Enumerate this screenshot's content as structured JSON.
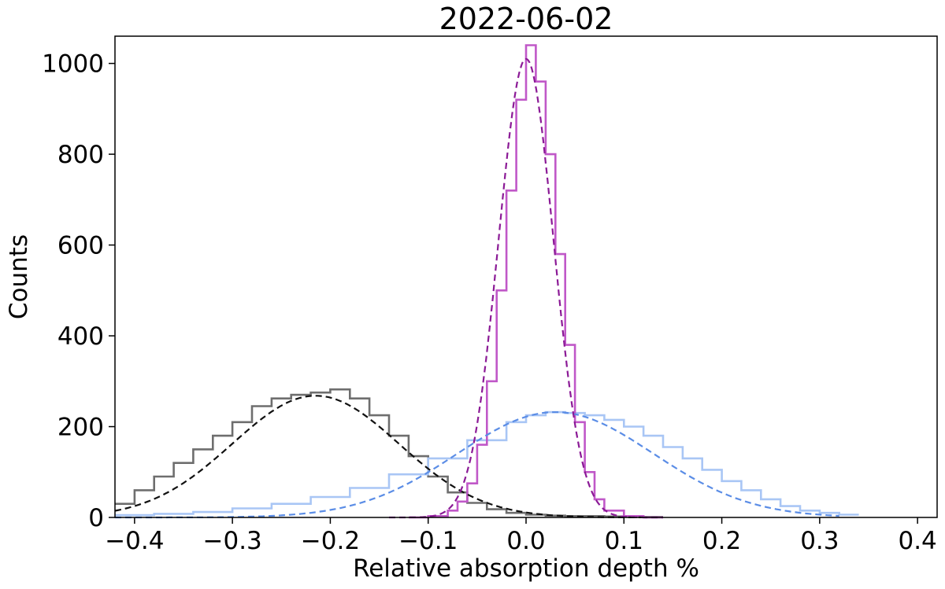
{
  "chart_data": {
    "type": "line",
    "title": "2022-06-02",
    "xlabel": "Relative absorption depth %",
    "ylabel": "Counts",
    "xlim": [
      -0.42,
      0.42
    ],
    "ylim": [
      0,
      1060
    ],
    "xticks": [
      -0.4,
      -0.3,
      -0.2,
      -0.1,
      0.0,
      0.1,
      0.2,
      0.3,
      0.4
    ],
    "xtick_labels": [
      "−0.4",
      "−0.3",
      "−0.2",
      "−0.1",
      "0.0",
      "0.1",
      "0.2",
      "0.3",
      "0.4"
    ],
    "yticks": [
      0,
      200,
      400,
      600,
      800,
      1000
    ],
    "ytick_labels": [
      "0",
      "200",
      "400",
      "600",
      "800",
      "1000"
    ],
    "grid": false,
    "legend": "none",
    "series": [
      {
        "style": "histogram",
        "color": "#6e6e6e",
        "x": [
          -0.42,
          -0.4,
          -0.38,
          -0.36,
          -0.34,
          -0.32,
          -0.3,
          -0.28,
          -0.26,
          -0.24,
          -0.22,
          -0.2,
          -0.18,
          -0.16,
          -0.14,
          -0.12,
          -0.1,
          -0.08,
          -0.06,
          -0.04,
          -0.02,
          0.0,
          0.02,
          0.04,
          0.06,
          0.08,
          0.1,
          0.12
        ],
        "y": [
          30,
          60,
          90,
          120,
          150,
          180,
          210,
          245,
          262,
          270,
          275,
          282,
          262,
          225,
          180,
          135,
          90,
          55,
          32,
          18,
          10,
          6,
          4,
          3,
          3,
          2,
          2,
          1
        ]
      },
      {
        "style": "histogram",
        "color": "#a9c6f5",
        "x": [
          -0.42,
          -0.38,
          -0.34,
          -0.3,
          -0.26,
          -0.22,
          -0.18,
          -0.14,
          -0.1,
          -0.06,
          -0.02,
          0.0,
          0.02,
          0.04,
          0.06,
          0.08,
          0.1,
          0.12,
          0.14,
          0.16,
          0.18,
          0.2,
          0.22,
          0.24,
          0.26,
          0.28,
          0.3,
          0.32
        ],
        "y": [
          5,
          8,
          12,
          20,
          30,
          45,
          65,
          95,
          130,
          170,
          210,
          225,
          232,
          230,
          225,
          215,
          200,
          180,
          155,
          130,
          105,
          80,
          60,
          40,
          25,
          15,
          10,
          6
        ]
      },
      {
        "style": "histogram",
        "color": "#c058c8",
        "x": [
          -0.12,
          -0.1,
          -0.08,
          -0.07,
          -0.06,
          -0.05,
          -0.04,
          -0.03,
          -0.02,
          -0.01,
          0.0,
          0.01,
          0.02,
          0.03,
          0.04,
          0.05,
          0.06,
          0.07,
          0.08,
          0.1,
          0.12
        ],
        "y": [
          0,
          3,
          15,
          35,
          75,
          160,
          300,
          500,
          720,
          920,
          1040,
          960,
          800,
          580,
          380,
          210,
          100,
          40,
          15,
          3,
          0
        ]
      },
      {
        "style": "dashed-fit",
        "color": "#111111",
        "amplitude": 268,
        "center": -0.215,
        "sigma": 0.085,
        "x_range": [
          -0.42,
          0.12
        ]
      },
      {
        "style": "dashed-fit",
        "color": "#5b8de6",
        "amplitude": 232,
        "center": 0.03,
        "sigma": 0.1,
        "x_range": [
          -0.42,
          0.32
        ]
      },
      {
        "style": "dashed-fit",
        "color": "#8b1a96",
        "amplitude": 1010,
        "center": 0.0,
        "sigma": 0.028,
        "x_range": [
          -0.14,
          0.14
        ]
      }
    ]
  }
}
